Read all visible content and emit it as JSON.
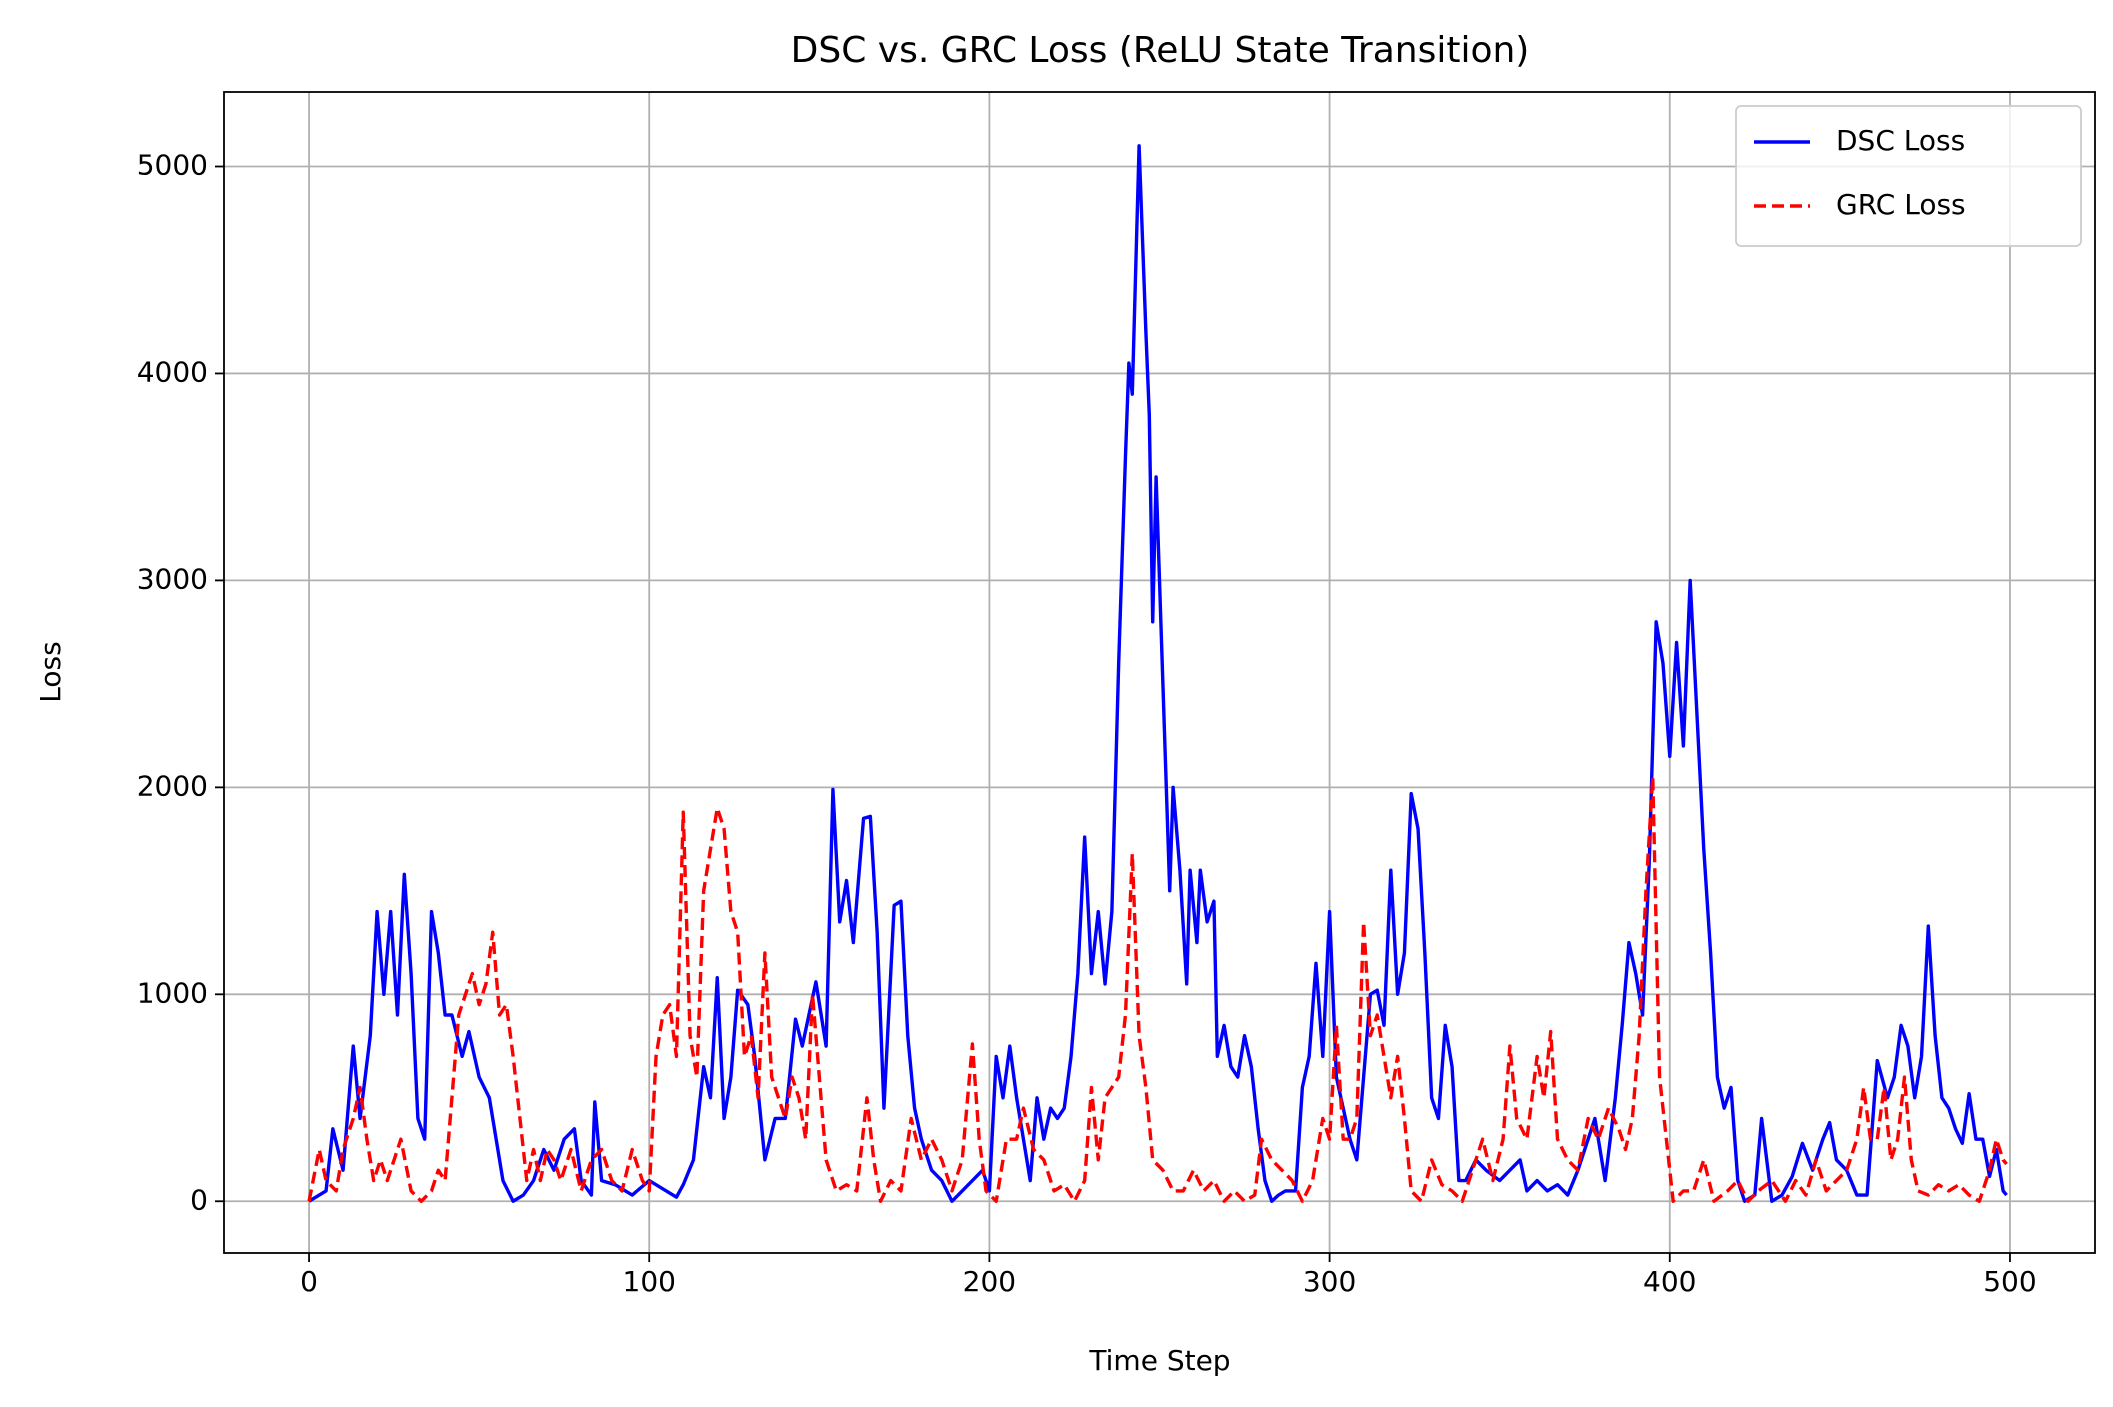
{
  "chart_data": {
    "type": "line",
    "title": "DSC vs. GRC Loss (ReLU State Transition)",
    "xlabel": "Time Step",
    "ylabel": "Loss",
    "xlim": [
      -25,
      525
    ],
    "ylim": [
      -250,
      5360
    ],
    "xticks": [
      0,
      100,
      200,
      300,
      400,
      500
    ],
    "yticks": [
      0,
      1000,
      2000,
      3000,
      4000,
      5000
    ],
    "grid": true,
    "legend": "upper right",
    "series": [
      {
        "name": "DSC Loss",
        "color": "#0000ff",
        "linestyle": "solid",
        "x": [
          0,
          5,
          7,
          10,
          13,
          15,
          18,
          20,
          22,
          24,
          26,
          28,
          30,
          32,
          34,
          36,
          38,
          40,
          42,
          45,
          47,
          50,
          53,
          55,
          57,
          60,
          63,
          66,
          69,
          72,
          75,
          78,
          80,
          83,
          84,
          86,
          90,
          95,
          100,
          105,
          108,
          110,
          113,
          116,
          118,
          120,
          122,
          124,
          126,
          129,
          131,
          134,
          137,
          140,
          143,
          145,
          149,
          152,
          154,
          156,
          158,
          160,
          163,
          165,
          167,
          169,
          172,
          174,
          176,
          178,
          180,
          183,
          186,
          189,
          192,
          195,
          198,
          200,
          202,
          204,
          206,
          208,
          210,
          212,
          214,
          216,
          218,
          220,
          222,
          224,
          226,
          228,
          230,
          232,
          234,
          236,
          238,
          240,
          241,
          242,
          244,
          246,
          247,
          248,
          249,
          251,
          253,
          254,
          256,
          258,
          259,
          261,
          262,
          264,
          266,
          267,
          269,
          271,
          273,
          275,
          277,
          279,
          281,
          283,
          285,
          287,
          290,
          292,
          294,
          296,
          298,
          300,
          302,
          304,
          306,
          308,
          310,
          312,
          314,
          316,
          318,
          320,
          322,
          324,
          326,
          328,
          330,
          332,
          334,
          336,
          338,
          340,
          343,
          346,
          350,
          353,
          356,
          358,
          361,
          364,
          367,
          370,
          373,
          376,
          378,
          381,
          384,
          386,
          388,
          390,
          392,
          394,
          396,
          398,
          400,
          402,
          404,
          406,
          408,
          410,
          412,
          414,
          416,
          418,
          420,
          422,
          425,
          427,
          430,
          433,
          436,
          439,
          442,
          445,
          447,
          449,
          452,
          455,
          458,
          461,
          464,
          466,
          468,
          470,
          472,
          474,
          476,
          478,
          480,
          482,
          484,
          486,
          488,
          490,
          492,
          494,
          496,
          498,
          499
        ],
        "values": [
          0,
          50,
          350,
          150,
          750,
          400,
          800,
          1400,
          1000,
          1400,
          900,
          1580,
          1100,
          400,
          300,
          1400,
          1200,
          900,
          900,
          700,
          820,
          600,
          500,
          300,
          100,
          0,
          30,
          100,
          250,
          150,
          300,
          350,
          100,
          30,
          480,
          100,
          80,
          30,
          100,
          50,
          20,
          80,
          200,
          650,
          500,
          1080,
          400,
          600,
          1020,
          950,
          700,
          200,
          400,
          400,
          880,
          750,
          1060,
          750,
          1990,
          1350,
          1550,
          1250,
          1850,
          1860,
          1300,
          450,
          1430,
          1450,
          800,
          450,
          300,
          150,
          100,
          0,
          50,
          100,
          150,
          50,
          700,
          500,
          750,
          500,
          300,
          100,
          500,
          300,
          450,
          400,
          450,
          700,
          1100,
          1760,
          1100,
          1400,
          1050,
          1400,
          2600,
          3600,
          4050,
          3900,
          5100,
          4200,
          3800,
          2800,
          3500,
          2500,
          1500,
          2000,
          1600,
          1050,
          1600,
          1250,
          1600,
          1350,
          1450,
          700,
          850,
          650,
          600,
          800,
          650,
          350,
          100,
          0,
          30,
          50,
          50,
          550,
          700,
          1150,
          700,
          1400,
          600,
          450,
          300,
          200,
          600,
          1000,
          1020,
          850,
          1600,
          1000,
          1200,
          1970,
          1800,
          1200,
          500,
          400,
          850,
          650,
          100,
          100,
          200,
          150,
          100,
          150,
          200,
          50,
          100,
          50,
          80,
          30,
          150,
          300,
          400,
          100,
          500,
          850,
          1250,
          1100,
          900,
          1650,
          2800,
          2600,
          2150,
          2700,
          2200,
          3000,
          2350,
          1700,
          1200,
          600,
          450,
          550,
          100,
          0,
          30,
          400,
          0,
          30,
          120,
          280,
          150,
          300,
          380,
          200,
          150,
          30,
          30,
          680,
          500,
          600,
          850,
          750,
          500,
          700,
          1330,
          800,
          500,
          450,
          350,
          280,
          520,
          300,
          300,
          120,
          250,
          50,
          30
        ]
      },
      {
        "name": "GRC Loss",
        "color": "#ff0000",
        "linestyle": "dashed",
        "x": [
          0,
          3,
          5,
          8,
          10,
          13,
          15,
          17,
          19,
          21,
          23,
          25,
          27,
          30,
          33,
          36,
          38,
          40,
          42,
          44,
          46,
          48,
          50,
          52,
          54,
          56,
          58,
          60,
          62,
          64,
          66,
          68,
          70,
          72,
          74,
          77,
          80,
          83,
          86,
          89,
          92,
          95,
          98,
          100,
          102,
          104,
          106,
          108,
          110,
          112,
          114,
          116,
          118,
          120,
          122,
          124,
          126,
          128,
          130,
          132,
          134,
          136,
          138,
          140,
          142,
          144,
          146,
          148,
          150,
          152,
          155,
          158,
          161,
          164,
          166,
          168,
          171,
          174,
          177,
          180,
          183,
          186,
          189,
          192,
          195,
          197,
          199,
          202,
          205,
          208,
          210,
          213,
          216,
          219,
          222,
          225,
          228,
          230,
          232,
          234,
          236,
          238,
          240,
          242,
          244,
          246,
          248,
          251,
          254,
          257,
          260,
          263,
          266,
          269,
          272,
          275,
          278,
          280,
          283,
          286,
          289,
          292,
          295,
          298,
          300,
          302,
          304,
          306,
          308,
          310,
          312,
          314,
          316,
          318,
          320,
          322,
          324,
          327,
          330,
          333,
          336,
          339,
          342,
          345,
          348,
          351,
          353,
          355,
          358,
          361,
          363,
          365,
          367,
          370,
          373,
          376,
          379,
          382,
          385,
          387,
          389,
          391,
          393,
          395,
          397,
          399,
          401,
          404,
          407,
          410,
          413,
          417,
          420,
          423,
          426,
          430,
          434,
          437,
          440,
          443,
          446,
          449,
          452,
          455,
          457,
          459,
          461,
          463,
          465,
          467,
          469,
          471,
          473,
          476,
          479,
          482,
          485,
          488,
          491,
          494,
          496,
          498,
          499
        ],
        "values": [
          0,
          250,
          100,
          50,
          250,
          400,
          550,
          300,
          100,
          200,
          100,
          200,
          300,
          50,
          0,
          50,
          150,
          100,
          500,
          900,
          1000,
          1100,
          950,
          1050,
          1300,
          900,
          950,
          700,
          400,
          100,
          250,
          100,
          250,
          200,
          100,
          250,
          50,
          200,
          250,
          100,
          50,
          250,
          100,
          50,
          700,
          900,
          950,
          700,
          1880,
          800,
          600,
          1500,
          1700,
          1900,
          1800,
          1400,
          1300,
          700,
          800,
          500,
          1200,
          600,
          500,
          400,
          600,
          500,
          300,
          1000,
          600,
          200,
          50,
          80,
          50,
          500,
          200,
          0,
          100,
          50,
          400,
          200,
          300,
          200,
          50,
          200,
          760,
          300,
          50,
          0,
          300,
          300,
          450,
          250,
          200,
          50,
          80,
          0,
          100,
          550,
          200,
          500,
          550,
          600,
          900,
          1680,
          800,
          550,
          200,
          150,
          50,
          50,
          150,
          50,
          100,
          0,
          50,
          0,
          30,
          300,
          200,
          150,
          100,
          0,
          100,
          400,
          300,
          850,
          300,
          300,
          400,
          1350,
          800,
          900,
          700,
          500,
          700,
          400,
          50,
          0,
          200,
          80,
          50,
          0,
          150,
          300,
          100,
          300,
          750,
          400,
          300,
          700,
          500,
          820,
          300,
          200,
          150,
          400,
          300,
          450,
          350,
          250,
          400,
          800,
          1500,
          2050,
          600,
          300,
          0,
          50,
          50,
          200,
          0,
          50,
          100,
          0,
          50,
          100,
          0,
          100,
          30,
          200,
          50,
          100,
          150,
          300,
          550,
          300,
          300,
          550,
          200,
          300,
          600,
          200,
          50,
          30,
          80,
          50,
          80,
          30,
          0,
          150,
          300,
          200,
          180
        ]
      }
    ]
  }
}
